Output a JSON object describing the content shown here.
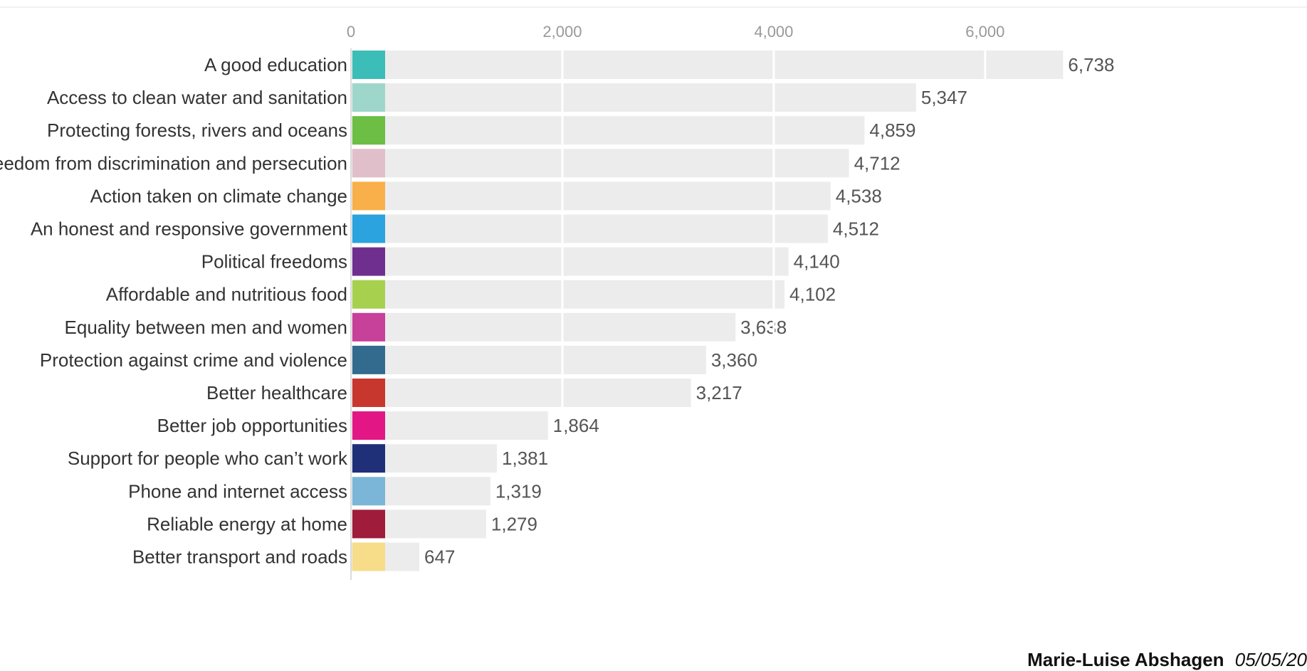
{
  "chart_data": {
    "type": "bar",
    "orientation": "horizontal",
    "categories": [
      "A good education",
      "Access to clean water and sanitation",
      "Protecting forests, rivers and oceans",
      "Freedom from discrimination and persecution",
      "Action taken on climate change",
      "An honest and responsive government",
      "Political freedoms",
      "Affordable and nutritious food",
      "Equality between men and women",
      "Protection against crime and violence",
      "Better healthcare",
      "Better job opportunities",
      "Support for people who can’t work",
      "Phone and internet access",
      "Reliable energy at home",
      "Better transport and roads"
    ],
    "values": [
      6738,
      5347,
      4859,
      4712,
      4538,
      4512,
      4140,
      4102,
      3638,
      3360,
      3217,
      1864,
      1381,
      1319,
      1279,
      647
    ],
    "value_labels": [
      "6,738",
      "5,347",
      "4,859",
      "4,712",
      "4,538",
      "4,512",
      "4,140",
      "4,102",
      "3,638",
      "3,360",
      "3,217",
      "1,864",
      "1,381",
      "1,319",
      "1,279",
      "647"
    ],
    "category_colors": [
      "#3dbdb7",
      "#9fd6cc",
      "#6cbe45",
      "#e0bfcb",
      "#f9b04a",
      "#2aa3de",
      "#6f2f8f",
      "#a7d04f",
      "#c7409a",
      "#336b8f",
      "#c8372d",
      "#e21785",
      "#1f2f78",
      "#7bb6d8",
      "#9f1c3b",
      "#f7dc8a"
    ],
    "bar_color": "#ececec",
    "gridline_color": "#ffffff",
    "xticks": [
      0,
      2000,
      4000,
      6000
    ],
    "xtick_labels": [
      "0",
      "2,000",
      "4,000",
      "6,000"
    ],
    "xlim": [
      0,
      6800
    ],
    "grid": true,
    "title": "",
    "xlabel": "",
    "ylabel": ""
  },
  "credit": {
    "name": "Marie-Luise Abshagen",
    "date": "05/05/20"
  }
}
